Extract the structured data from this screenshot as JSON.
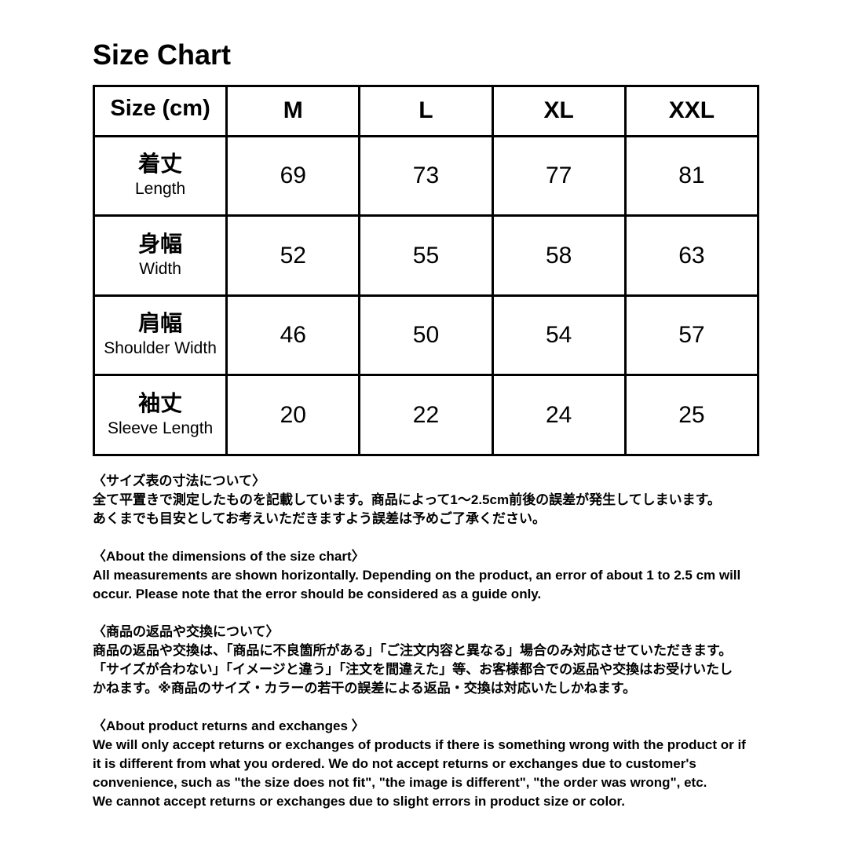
{
  "title": "Size Chart",
  "table": {
    "header": [
      "Size (cm)",
      "M",
      "L",
      "XL",
      "XXL"
    ],
    "rows": [
      {
        "jp": "着丈",
        "en": "Length",
        "values": [
          "69",
          "73",
          "77",
          "81"
        ]
      },
      {
        "jp": "身幅",
        "en": "Width",
        "values": [
          "52",
          "55",
          "58",
          "63"
        ]
      },
      {
        "jp": "肩幅",
        "en": "Shoulder Width",
        "values": [
          "46",
          "50",
          "54",
          "57"
        ]
      },
      {
        "jp": "袖丈",
        "en": "Sleeve Length",
        "values": [
          "20",
          "22",
          "24",
          "25"
        ]
      }
    ]
  },
  "notes": [
    {
      "heading": "〈サイズ表の寸法について〉",
      "lines": [
        "全て平置きで測定したものを記載しています。商品によって1〜2.5cm前後の誤差が発生してしまいます。",
        "あくまでも目安としてお考えいただきますよう誤差は予めご了承ください。"
      ]
    },
    {
      "heading": "〈About the dimensions of the size chart〉",
      "lines": [
        "All measurements are shown horizontally. Depending on the product, an error of about 1 to 2.5 cm will",
        "occur. Please note that the error should be considered as a guide only."
      ]
    },
    {
      "heading": "〈商品の返品や交換について〉",
      "lines": [
        "商品の返品や交換は、「商品に不良箇所がある」「ご注文内容と異なる」場合のみ対応させていただきます。",
        "「サイズが合わない」「イメージと違う」「注文を間違えた」等、お客様都合での返品や交換はお受けいたし",
        "かねます。※商品のサイズ・カラーの若干の誤差による返品・交換は対応いたしかねます。"
      ]
    },
    {
      "heading": "〈About product returns and exchanges 〉",
      "lines": [
        "We will only accept returns or exchanges of products if there is something wrong with the product or if",
        "it is different from what you ordered. We do not accept returns or exchanges due to customer's",
        "convenience, such as \"the size does not fit\", \"the image is different\", \"the order was wrong\", etc.",
        "We cannot accept returns or exchanges due to slight errors in product size or color."
      ]
    }
  ]
}
